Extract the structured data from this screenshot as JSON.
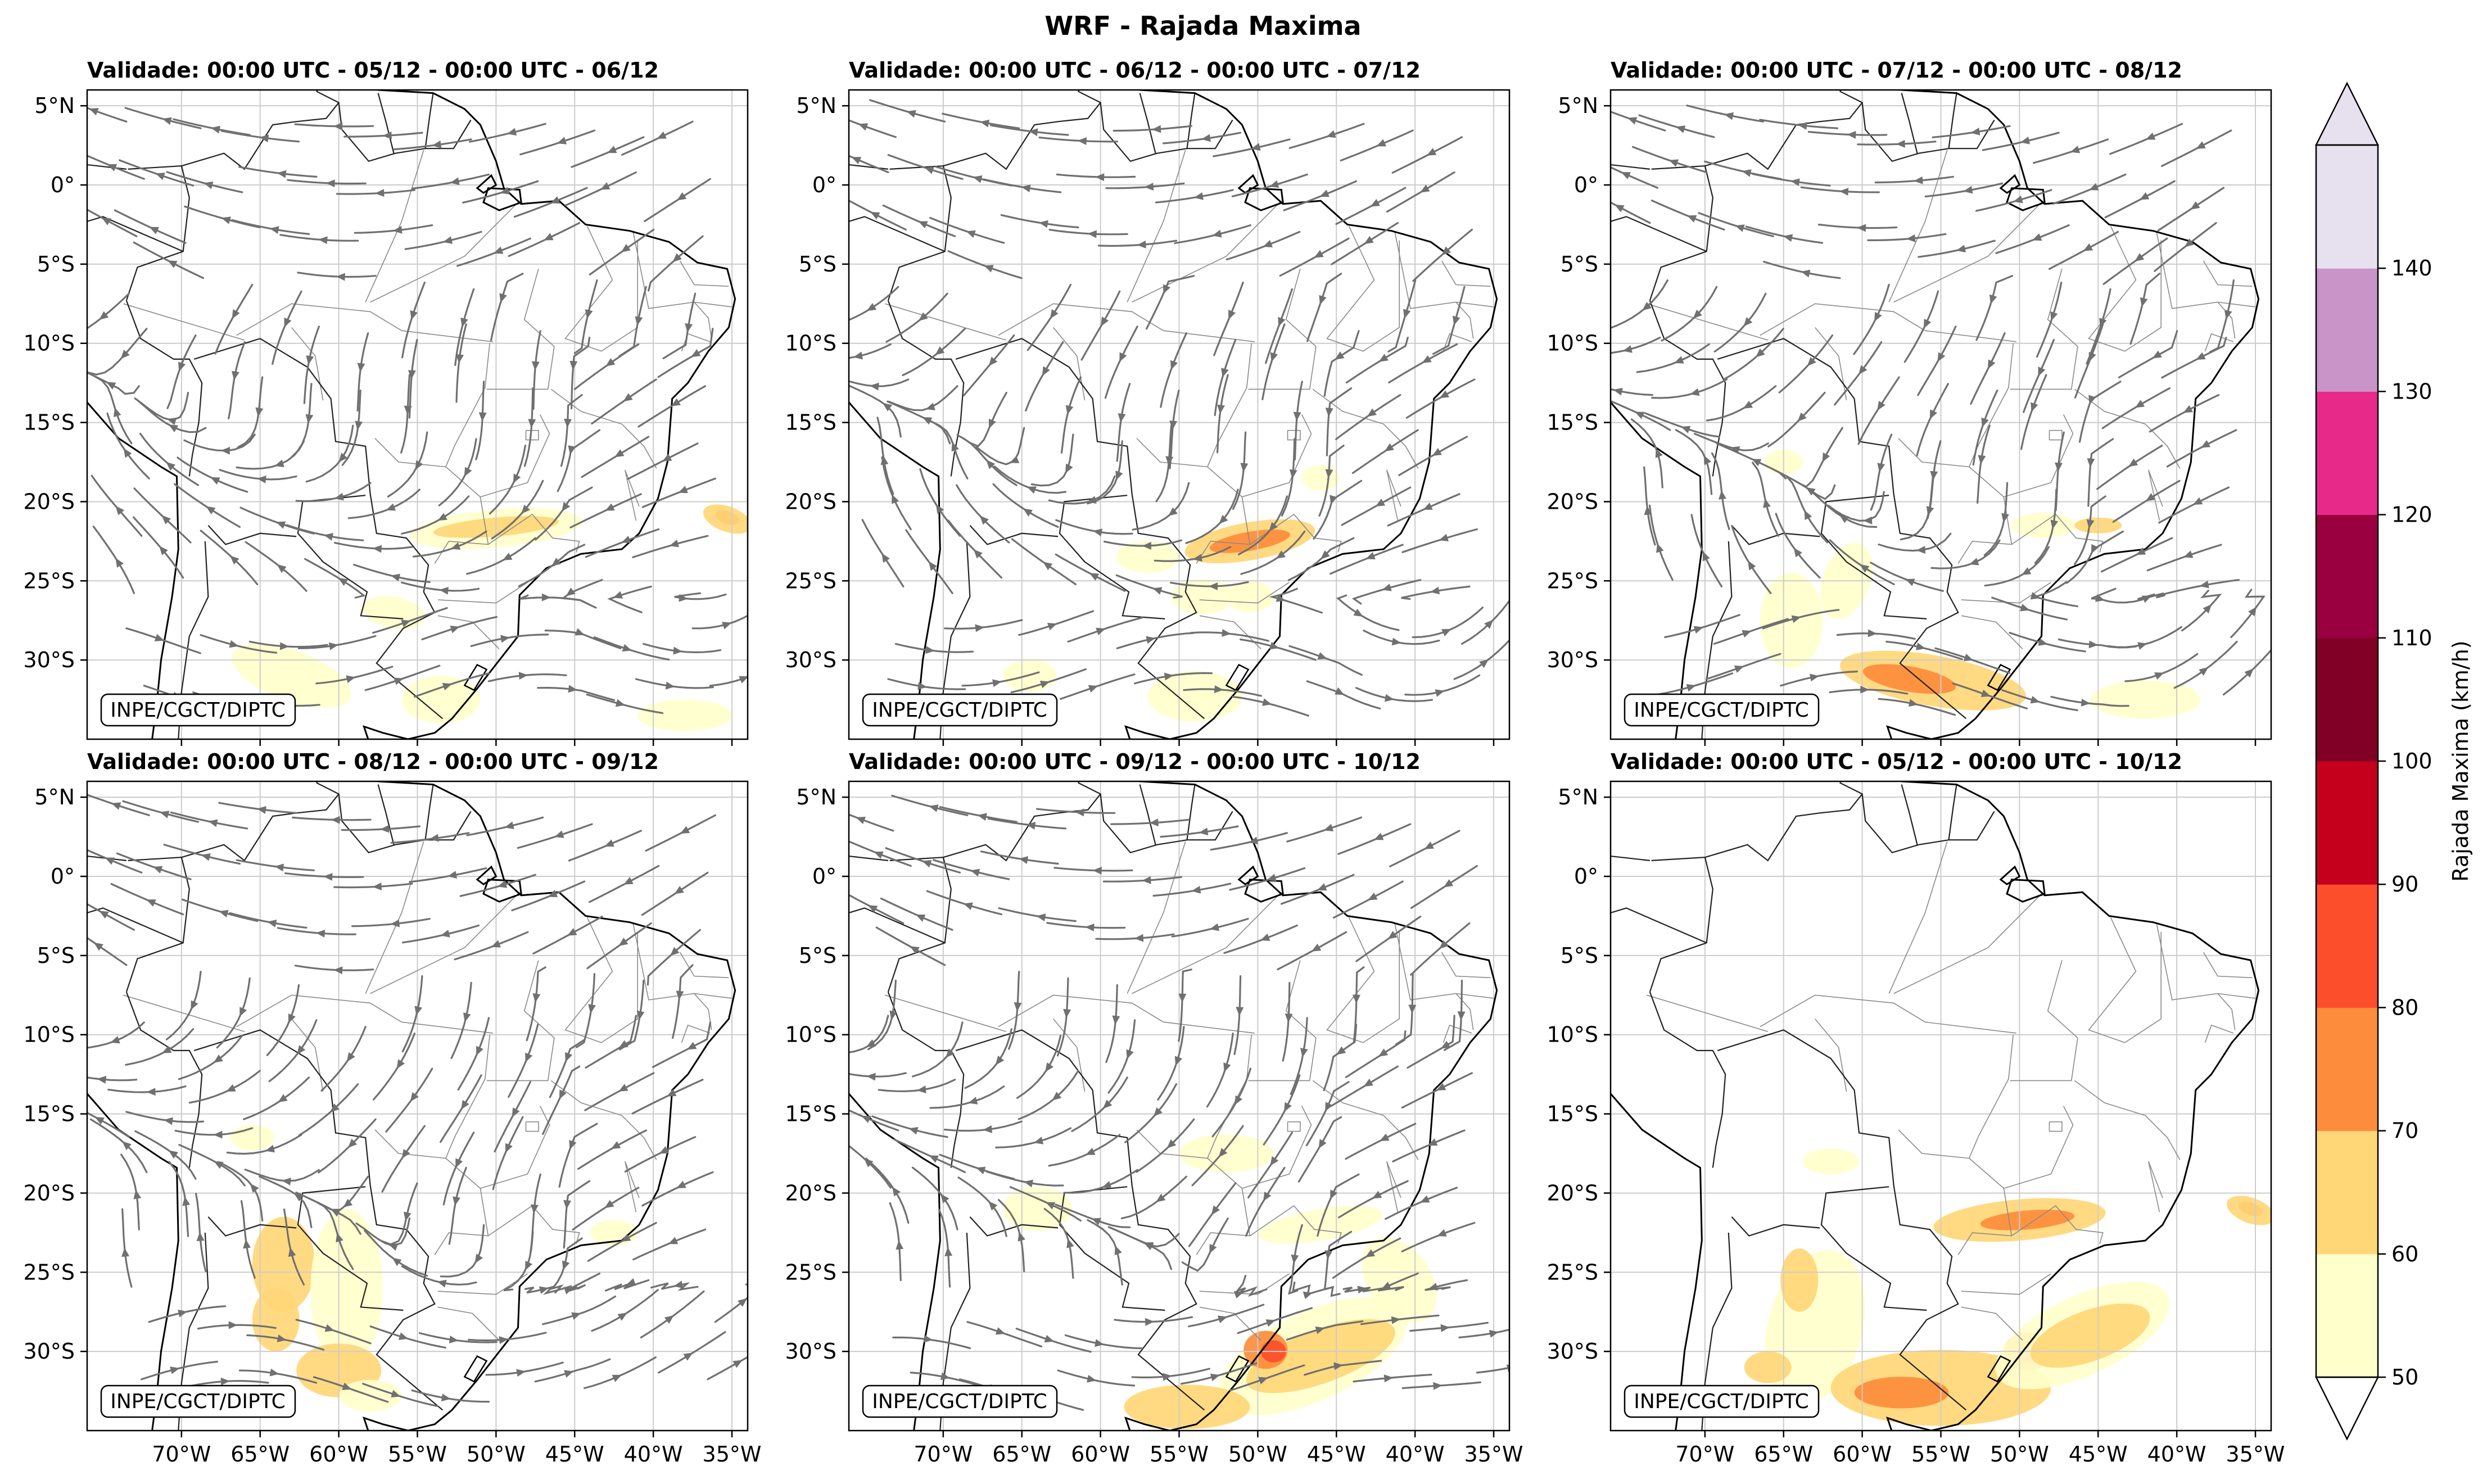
{
  "figure": {
    "title": "WRF - Rajada Maxima",
    "credit": "INPE/CGCT/DIPTC"
  },
  "panels": [
    {
      "title": "Validade: 00:00 UTC - 05/12 - 00:00 UTC - 06/12",
      "streamlines": true
    },
    {
      "title": "Validade: 00:00 UTC - 06/12 - 00:00 UTC - 07/12",
      "streamlines": true
    },
    {
      "title": "Validade: 00:00 UTC - 07/12 - 00:00 UTC - 08/12",
      "streamlines": true
    },
    {
      "title": "Validade: 00:00 UTC - 08/12 - 00:00 UTC - 09/12",
      "streamlines": true
    },
    {
      "title": "Validade: 00:00 UTC - 09/12 - 00:00 UTC - 10/12",
      "streamlines": true
    },
    {
      "title": "Validade: 00:00 UTC - 05/12 - 00:00 UTC - 10/12",
      "streamlines": false
    }
  ],
  "axes": {
    "lat_ticks": [
      "5°N",
      "0°",
      "5°S",
      "10°S",
      "15°S",
      "20°S",
      "25°S",
      "30°S"
    ],
    "lon_ticks": [
      "70°W",
      "65°W",
      "60°W",
      "55°W",
      "50°W",
      "45°W",
      "40°W",
      "35°W"
    ]
  },
  "colorbar": {
    "label": "Rajada Maxima (km/h)",
    "ticks": [
      "50",
      "60",
      "70",
      "80",
      "90",
      "100",
      "110",
      "120",
      "130",
      "140"
    ],
    "colors": [
      "#ffffcc",
      "#ffd777",
      "#fd8d3c",
      "#fc4e2a",
      "#c4001d",
      "#800026",
      "#9a003f",
      "#e7298a",
      "#c994c7",
      "#e7e1ef"
    ]
  },
  "map_colors": {
    "streamline": "#707070",
    "coast": "#000000",
    "border": "#8a8a8a",
    "grid": "#cccccc"
  }
}
